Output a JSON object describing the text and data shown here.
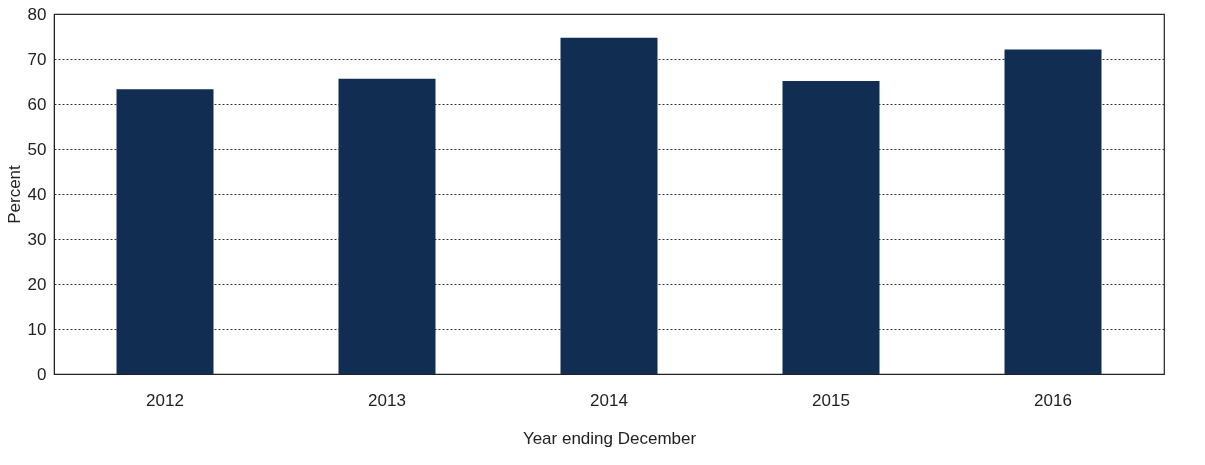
{
  "chart_data": {
    "type": "bar",
    "xlabel": "Year ending December",
    "ylabel": "Percent",
    "categories": [
      "2012",
      "2013",
      "2014",
      "2015",
      "2016"
    ],
    "values": [
      63.3,
      65.6,
      74.7,
      65.1,
      72.1
    ],
    "color": "#112d52",
    "ylim": [
      0,
      80
    ],
    "yticks": [
      0,
      10,
      20,
      30,
      40,
      50,
      60,
      70,
      80
    ],
    "grid": "y"
  }
}
